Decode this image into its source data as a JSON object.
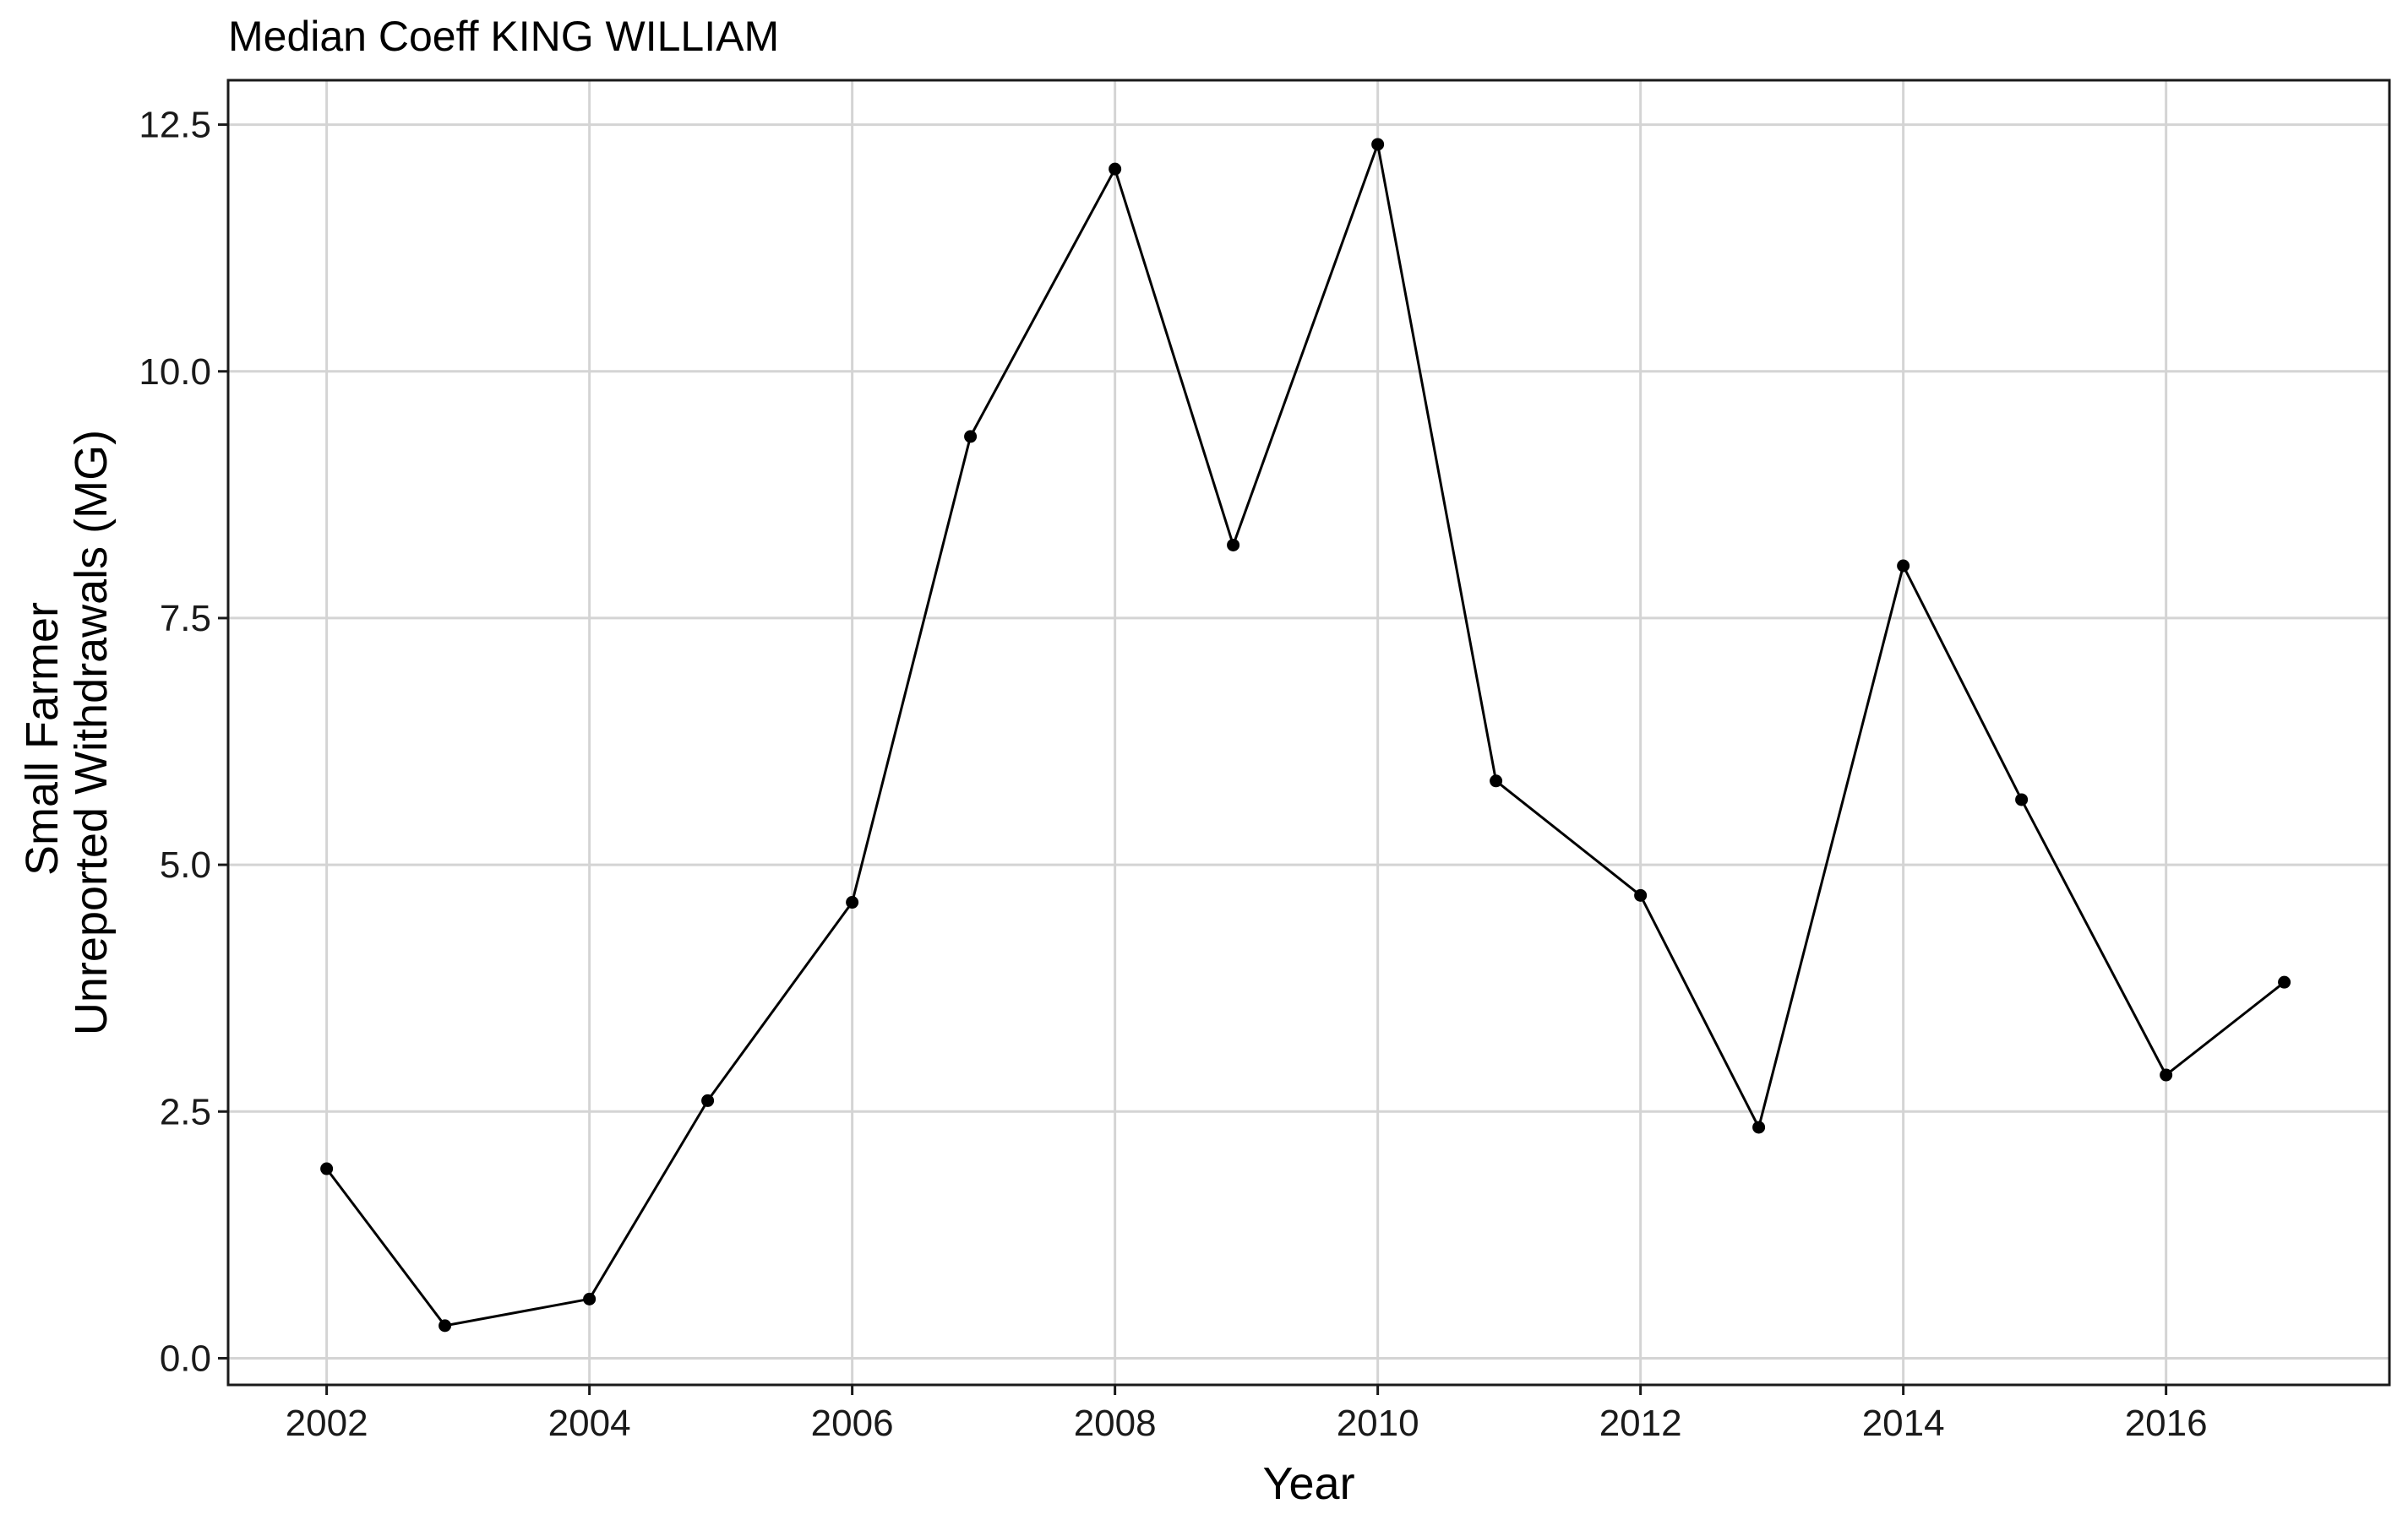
{
  "chart_data": {
    "type": "line",
    "title": "Median Coeff KING WILLIAM",
    "xlabel": "Year",
    "ylabel_lines": [
      "Small Farmer",
      "Unreported Withdrawals (MG)"
    ],
    "xlim": [
      2001.25,
      2017.7
    ],
    "ylim": [
      -0.27,
      12.95
    ],
    "xticks": [
      2002,
      2004,
      2006,
      2008,
      2010,
      2012,
      2014,
      2016
    ],
    "xtick_labels": [
      "2002",
      "2004",
      "2006",
      "2008",
      "2010",
      "2012",
      "2014",
      "2016"
    ],
    "yticks": [
      0,
      2.5,
      5,
      7.5,
      10,
      12.5
    ],
    "ytick_labels": [
      "0.0",
      "2.5",
      "5.0",
      "7.5",
      "10.0",
      "12.5"
    ],
    "grid": true,
    "series": [
      {
        "x": [
          2002,
          2002.9,
          2004,
          2004.9,
          2006,
          2006.9,
          2008,
          2008.9,
          2010,
          2010.9,
          2012,
          2012.9,
          2014,
          2014.9,
          2016,
          2016.9
        ],
        "values": [
          1.92,
          0.33,
          0.6,
          2.61,
          4.62,
          9.34,
          12.05,
          8.24,
          12.3,
          5.85,
          4.69,
          2.34,
          8.03,
          5.66,
          2.87,
          3.81
        ]
      }
    ]
  }
}
